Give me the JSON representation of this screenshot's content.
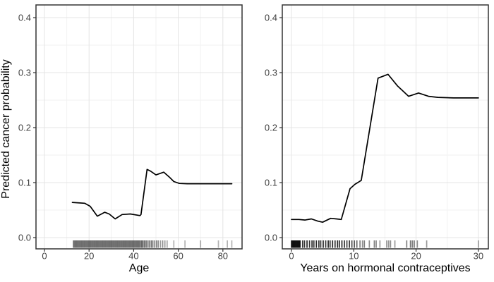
{
  "figure": {
    "background": "#ffffff",
    "shared_y_title": "Predicted cancer probability"
  },
  "palette": {
    "panel_bg": "#ffffff",
    "panel_border": "#333333",
    "grid_major": "#e4e4e4",
    "grid_minor": "#f2f2f2",
    "line_color": "#000000",
    "tick_mark": "#333333",
    "tick_label_color": "#404040",
    "title_color": "#000000",
    "rug_color": "#000000"
  },
  "chart_data": [
    {
      "type": "line",
      "title": "",
      "xlabel": "Age",
      "ylabel": "Predicted cancer probability",
      "legend": "none",
      "grid": "on",
      "xlim": [
        -3.8,
        88.6
      ],
      "ylim": [
        -0.0205,
        0.4231
      ],
      "x_ticks": [
        [
          0,
          "0"
        ],
        [
          20,
          "20"
        ],
        [
          40,
          "40"
        ],
        [
          60,
          "60"
        ],
        [
          80,
          "80"
        ]
      ],
      "x_minor": [
        10,
        30,
        50,
        70
      ],
      "y_ticks": [
        [
          0,
          "0.0"
        ],
        [
          0.1,
          "0.1"
        ],
        [
          0.2,
          "0.2"
        ],
        [
          0.3,
          "0.3"
        ],
        [
          0.4,
          "0.4"
        ]
      ],
      "y_minor": [
        0.05,
        0.15,
        0.25,
        0.35
      ],
      "line": [
        [
          12.5,
          0.064
        ],
        [
          16,
          0.063
        ],
        [
          18,
          0.0625
        ],
        [
          20.5,
          0.057
        ],
        [
          23.7,
          0.039
        ],
        [
          27,
          0.046
        ],
        [
          29,
          0.043
        ],
        [
          31.7,
          0.034
        ],
        [
          34.8,
          0.042
        ],
        [
          38.5,
          0.043
        ],
        [
          42.8,
          0.04
        ],
        [
          43.3,
          0.042
        ],
        [
          46,
          0.124
        ],
        [
          47.5,
          0.121
        ],
        [
          50,
          0.114
        ],
        [
          53.5,
          0.119
        ],
        [
          56,
          0.11
        ],
        [
          58,
          0.102
        ],
        [
          60.5,
          0.0985
        ],
        [
          64,
          0.098
        ],
        [
          84,
          0.098
        ]
      ],
      "rug_bands": [
        [
          13,
          43,
          0.5,
          0.55
        ]
      ],
      "rug_marks": [
        [
          43.6,
          0.6
        ],
        [
          44.2,
          0.65
        ],
        [
          44.9,
          0.6
        ],
        [
          45.6,
          0.55
        ],
        [
          46.4,
          0.6
        ],
        [
          47.1,
          0.5
        ],
        [
          47.9,
          0.55
        ],
        [
          48.6,
          0.5
        ],
        [
          49.4,
          0.45
        ],
        [
          50.2,
          0.5
        ],
        [
          51,
          0.45
        ],
        [
          52,
          0.4
        ],
        [
          53,
          0.45
        ],
        [
          54,
          0.4
        ],
        [
          55,
          0.35
        ],
        [
          58,
          0.3
        ],
        [
          63,
          0.3
        ],
        [
          70,
          0.32
        ],
        [
          78,
          0.3
        ],
        [
          82,
          0.3
        ],
        [
          84,
          0.3
        ]
      ]
    },
    {
      "type": "line",
      "title": "",
      "xlabel": "Years on hormonal contraceptives",
      "ylabel": "",
      "legend": "none",
      "grid": "on",
      "xlim": [
        -1.47,
        31.6
      ],
      "ylim": [
        -0.0205,
        0.4231
      ],
      "x_ticks": [
        [
          0,
          "0"
        ],
        [
          10,
          "10"
        ],
        [
          20,
          "20"
        ],
        [
          30,
          "30"
        ]
      ],
      "x_minor": [
        5,
        15,
        25
      ],
      "y_ticks": [
        [
          0,
          "0.0"
        ],
        [
          0.1,
          "0.1"
        ],
        [
          0.2,
          "0.2"
        ],
        [
          0.3,
          "0.3"
        ],
        [
          0.4,
          "0.4"
        ]
      ],
      "y_minor": [
        0.05,
        0.15,
        0.25,
        0.35
      ],
      "line": [
        [
          0,
          0.033
        ],
        [
          1.2,
          0.033
        ],
        [
          2.2,
          0.032
        ],
        [
          3.2,
          0.034
        ],
        [
          4.2,
          0.03
        ],
        [
          5,
          0.028
        ],
        [
          6.3,
          0.035
        ],
        [
          7.2,
          0.034
        ],
        [
          8,
          0.033
        ],
        [
          9.4,
          0.089
        ],
        [
          10.2,
          0.097
        ],
        [
          11.2,
          0.104
        ],
        [
          13.9,
          0.29
        ],
        [
          15.5,
          0.297
        ],
        [
          17,
          0.276
        ],
        [
          18.8,
          0.257
        ],
        [
          20.4,
          0.263
        ],
        [
          22,
          0.257
        ],
        [
          23.5,
          0.255
        ],
        [
          26,
          0.254
        ],
        [
          30,
          0.254
        ]
      ],
      "rug_bands": [
        [
          0,
          1.4,
          0.1,
          0.8
        ]
      ],
      "rug_marks": [
        [
          1.8,
          0.8
        ],
        [
          2.1,
          0.8
        ],
        [
          2.5,
          0.85
        ],
        [
          2.9,
          0.8
        ],
        [
          3.3,
          0.85
        ],
        [
          3.6,
          0.8
        ],
        [
          4.0,
          0.85
        ],
        [
          4.4,
          0.8
        ],
        [
          4.7,
          0.8
        ],
        [
          5.1,
          0.85
        ],
        [
          5.5,
          0.8
        ],
        [
          5.9,
          0.85
        ],
        [
          6.2,
          0.8
        ],
        [
          6.6,
          0.85
        ],
        [
          7.0,
          0.8
        ],
        [
          7.4,
          0.85
        ],
        [
          7.7,
          0.8
        ],
        [
          8.1,
          0.85
        ],
        [
          8.5,
          0.8
        ],
        [
          8.9,
          0.75
        ],
        [
          9.3,
          0.8
        ],
        [
          9.7,
          0.7
        ],
        [
          10.1,
          0.65
        ],
        [
          10.5,
          0.6
        ],
        [
          11.0,
          0.5
        ],
        [
          11.4,
          0.45
        ],
        [
          11.7,
          0.5
        ],
        [
          12.5,
          0.45
        ],
        [
          13.3,
          0.5
        ],
        [
          13.6,
          0.45
        ],
        [
          14.2,
          0.4
        ],
        [
          15.3,
          0.45
        ],
        [
          15.6,
          0.4
        ],
        [
          15.9,
          0.45
        ],
        [
          16.6,
          0.4
        ],
        [
          18.5,
          0.5
        ],
        [
          19.1,
          0.55
        ],
        [
          19.4,
          0.5
        ],
        [
          19.7,
          0.55
        ],
        [
          20.2,
          0.45
        ],
        [
          21.7,
          0.4
        ],
        [
          30,
          0.35
        ]
      ]
    }
  ]
}
